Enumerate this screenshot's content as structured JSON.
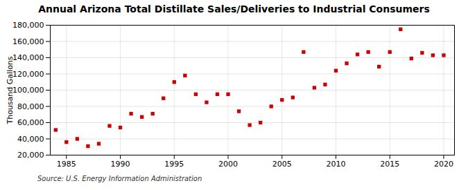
{
  "chart_data": {
    "type": "scatter",
    "title": "Annual Arizona Total Distillate Sales/Deliveries to Industrial Consumers",
    "ylabel": "Thousand Gallons",
    "source": "Source: U.S. Energy Information Administration",
    "x": [
      1984,
      1985,
      1986,
      1987,
      1988,
      1989,
      1990,
      1991,
      1992,
      1993,
      1994,
      1995,
      1996,
      1997,
      1998,
      1999,
      2000,
      2001,
      2002,
      2003,
      2004,
      2005,
      2006,
      2007,
      2008,
      2009,
      2010,
      2011,
      2012,
      2013,
      2014,
      2015,
      2016,
      2017,
      2018,
      2019,
      2020
    ],
    "values": [
      51000,
      36000,
      40000,
      31000,
      34000,
      56000,
      54000,
      71000,
      67000,
      71000,
      90000,
      110000,
      118000,
      95000,
      85000,
      95000,
      95000,
      74000,
      57000,
      60000,
      80000,
      88000,
      91000,
      147000,
      103000,
      107000,
      124000,
      133000,
      144000,
      147000,
      129000,
      147000,
      175000,
      139000,
      146000,
      143000,
      143000
    ],
    "color": "#cc0000",
    "marker": "square",
    "xlim": [
      1983.5,
      2021
    ],
    "xticks": [
      1985,
      1990,
      1995,
      2000,
      2005,
      2010,
      2015,
      2020
    ],
    "ylim": [
      20000,
      180000
    ],
    "yticks": [
      {
        "value": 20000,
        "label": "20,000"
      },
      {
        "value": 40000,
        "label": "40,000"
      },
      {
        "value": 60000,
        "label": "60,000"
      },
      {
        "value": 80000,
        "label": "80,000"
      },
      {
        "value": 100000,
        "label": "100,000"
      },
      {
        "value": 120000,
        "label": "120,000"
      },
      {
        "value": 140000,
        "label": "140,000"
      },
      {
        "value": 160000,
        "label": "160,000"
      },
      {
        "value": 180000,
        "label": "180,000"
      }
    ],
    "grid": true
  }
}
